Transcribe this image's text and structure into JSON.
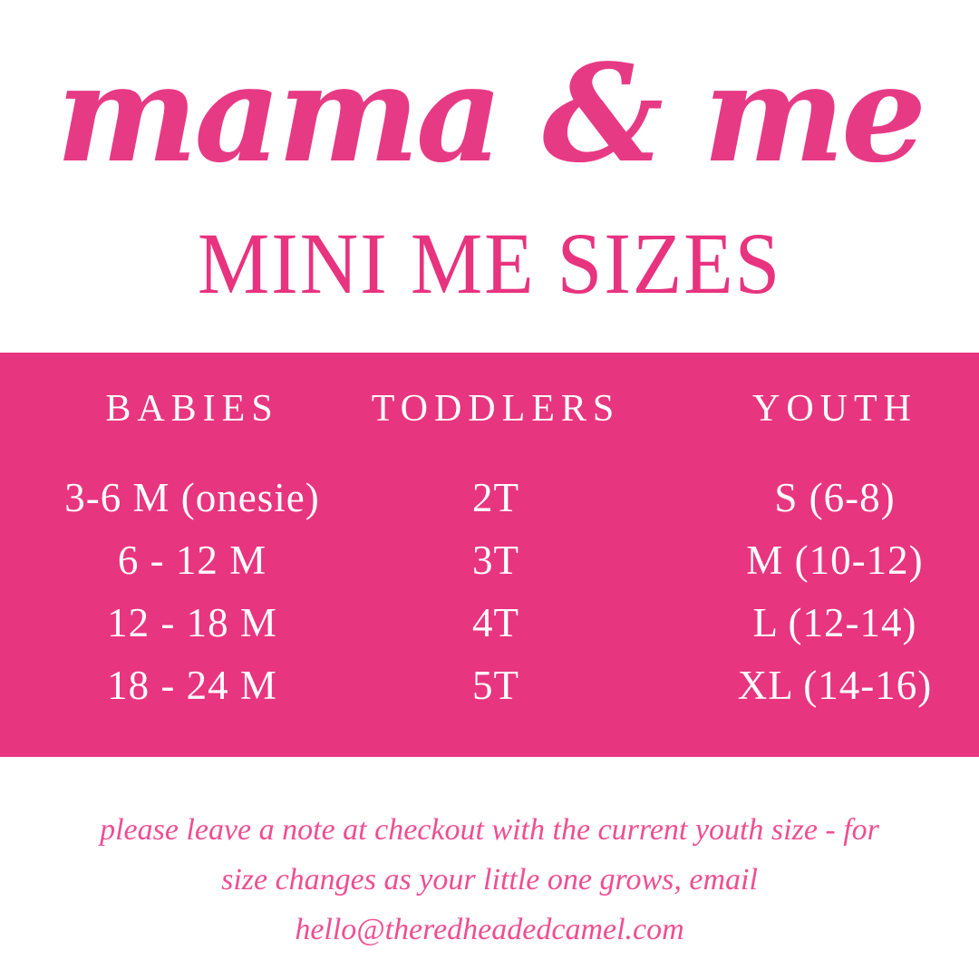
{
  "title": {
    "script": "mama & me",
    "subtitle": "MINI ME SIZES"
  },
  "size_chart": {
    "columns": [
      "BABIES",
      "TODDLERS",
      "YOUTH"
    ],
    "rows": [
      [
        "3-6 M (onesie)",
        "2T",
        "S (6-8)"
      ],
      [
        "6 - 12 M",
        "3T",
        "M (10-12)"
      ],
      [
        "12 - 18 M",
        "4T",
        "L (12-14)"
      ],
      [
        "18 - 24 M",
        "5T",
        "XL (14-16)"
      ]
    ]
  },
  "footer": {
    "lines": [
      "please leave a note at checkout with the current youth size - for",
      "size changes as your little one grows, email",
      "hello@theredheadedcamel.com"
    ]
  },
  "colors": {
    "background": "#FFFFFF",
    "title_pink": "#E73A85",
    "heading_pink": "#E8337F",
    "panel_pink": "#E8357F",
    "panel_text": "#FFFFFF",
    "footer_pink": "#EF4E92"
  }
}
